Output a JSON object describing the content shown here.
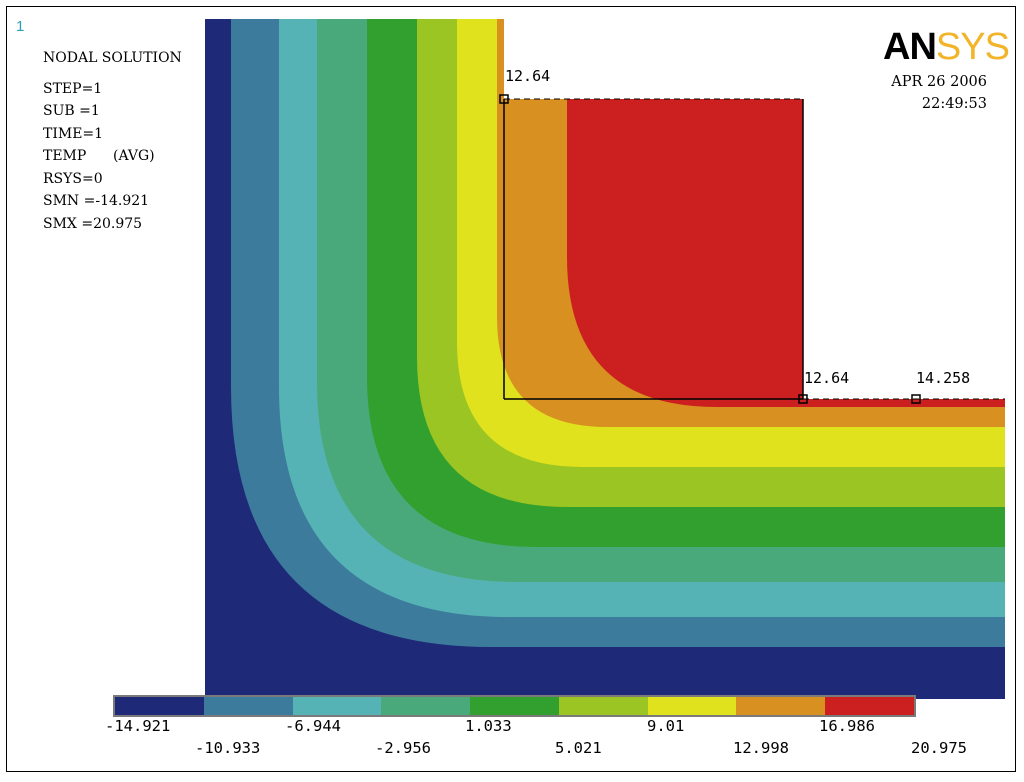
{
  "window_number": "1",
  "info": {
    "title": "NODAL SOLUTION",
    "step": "STEP=1",
    "sub": "SUB =1",
    "time": "TIME=1",
    "temp": "TEMP      (AVG)",
    "rsys": "RSYS=0",
    "smn": "SMN =-14.921",
    "smx": "SMX =20.975"
  },
  "logo": {
    "an": "AN",
    "sys": "SYS"
  },
  "datetime": {
    "date": "APR 26 2006",
    "time": "22:49:53"
  },
  "path_labels": {
    "top_left": "12.64",
    "bottom_right": "12.64",
    "edge": "14.258"
  },
  "legend": {
    "colors": [
      "#1e2a78",
      "#3d7b9c",
      "#55b3b5",
      "#4aa97a",
      "#31a02e",
      "#9bc523",
      "#e1e21e",
      "#d89020",
      "#cc1f1f"
    ],
    "upper_values": [
      "-14.921",
      "-6.944",
      "1.033",
      "9.01",
      "16.986"
    ],
    "lower_values": [
      "-10.933",
      "-2.956",
      "5.021",
      "12.998",
      "20.975"
    ]
  }
}
